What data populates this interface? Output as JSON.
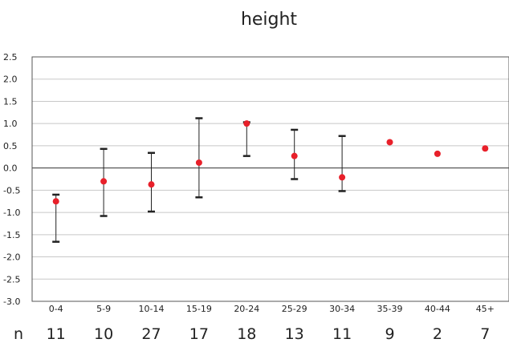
{
  "chart_data": {
    "type": "scatter",
    "title": "height",
    "xlabel": "",
    "ylabel": "",
    "ylim": [
      -3.0,
      2.5
    ],
    "yticks": [
      "2.5",
      "2.0",
      "1.5",
      "1.0",
      "0.5",
      "0.0",
      "-0.5",
      "-1.0",
      "-1.5",
      "-2.0",
      "-2.5",
      "-3.0"
    ],
    "categories": [
      "0-4",
      "5-9",
      "10-14",
      "15-19",
      "20-24",
      "25-29",
      "30-34",
      "35-39",
      "40-44",
      "45+"
    ],
    "series": [
      {
        "values": [
          -0.75,
          -0.3,
          -0.37,
          0.12,
          1.0,
          0.27,
          -0.21,
          0.58,
          0.32,
          0.44
        ],
        "error_high": [
          -0.6,
          0.43,
          0.34,
          1.12,
          1.03,
          0.86,
          0.72,
          null,
          null,
          null
        ],
        "error_low": [
          -1.66,
          -1.08,
          -0.98,
          -0.66,
          0.27,
          -0.25,
          -0.52,
          null,
          null,
          null
        ]
      }
    ],
    "n_label": "n",
    "n_values": [
      "11",
      "10",
      "27",
      "17",
      "18",
      "13",
      "11",
      "9",
      "2",
      "7"
    ],
    "grid": true,
    "colors": {
      "point": "#e8202a",
      "errorbar": "#222222",
      "grid": "#c8c8c8",
      "zero_line": "#333333"
    }
  }
}
